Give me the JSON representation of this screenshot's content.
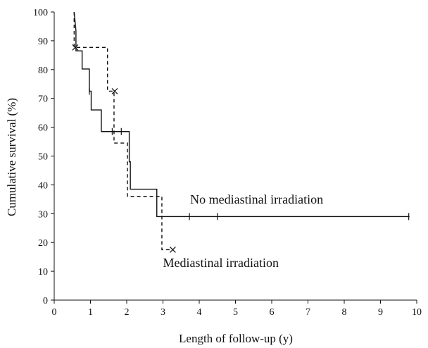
{
  "chart_data": {
    "type": "line",
    "xlabel": "Length of follow-up (y)",
    "ylabel": "Cumulative survival (%)",
    "xlim": [
      0,
      10
    ],
    "ylim": [
      0,
      100
    ],
    "xticks": [
      0,
      1,
      2,
      3,
      4,
      5,
      6,
      7,
      8,
      9,
      10
    ],
    "yticks": [
      0,
      10,
      20,
      30,
      40,
      50,
      60,
      70,
      80,
      90,
      100
    ],
    "grid": false,
    "series": [
      {
        "name": "No mediastinal irradiation",
        "style": "solid",
        "steps": [
          [
            0.55,
            100
          ],
          [
            0.6,
            93.5
          ],
          [
            0.6,
            86.5
          ],
          [
            0.77,
            86.5
          ],
          [
            0.77,
            80.2
          ],
          [
            0.97,
            80.2
          ],
          [
            0.97,
            72.5
          ],
          [
            1.02,
            72.5
          ],
          [
            1.02,
            66
          ],
          [
            1.3,
            66
          ],
          [
            1.3,
            58.5
          ],
          [
            2.07,
            58.5
          ],
          [
            2.07,
            48
          ],
          [
            2.1,
            48
          ],
          [
            2.1,
            38.5
          ],
          [
            2.83,
            38.5
          ],
          [
            2.83,
            29
          ],
          [
            9.8,
            29
          ]
        ],
        "censored": [
          [
            0.97,
            72.5
          ],
          [
            1.6,
            58.5
          ],
          [
            1.85,
            58.5
          ],
          [
            3.73,
            29
          ],
          [
            4.5,
            29
          ],
          [
            9.78,
            29
          ]
        ]
      },
      {
        "name": "Mediastinal irradiation",
        "style": "dashed",
        "steps": [
          [
            0.55,
            100
          ],
          [
            0.55,
            87.7
          ],
          [
            1.47,
            87.7
          ],
          [
            1.47,
            72.5
          ],
          [
            1.65,
            72.5
          ],
          [
            1.65,
            54.5
          ],
          [
            2.02,
            54.5
          ],
          [
            2.02,
            36
          ],
          [
            2.97,
            36
          ],
          [
            2.97,
            17.5
          ],
          [
            3.27,
            17.5
          ]
        ],
        "censored": [
          [
            0.58,
            87.7
          ],
          [
            1.67,
            72.5
          ],
          [
            3.27,
            17.5
          ]
        ]
      }
    ],
    "annotations": [
      {
        "text": "No mediastinal irradiation",
        "x": 3.75,
        "y": 33.5
      },
      {
        "text": "Mediastinal irradiation",
        "x": 3.0,
        "y": 11.5
      }
    ]
  }
}
